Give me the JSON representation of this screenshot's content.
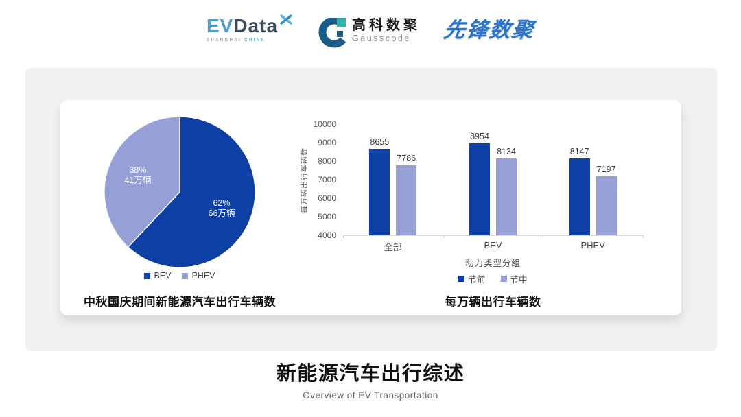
{
  "header": {
    "evdata": {
      "part1": "EV",
      "part2": "Data",
      "sub1": "SHANGHAI",
      "sub2": "CHINA"
    },
    "gausscode": {
      "name_cn": "高科数聚",
      "name_en": "Gausscode"
    },
    "pioneer": {
      "name": "先锋数聚"
    }
  },
  "colors": {
    "dark_blue": "#0D3FA5",
    "light_blue": "#96A0D6",
    "panel_bg": "#F0F0F0",
    "axis_line": "#D8D8D8",
    "brand_blue": "#2B74C8",
    "gauss_blue": "#1A5C86",
    "teal": "#2FB4AE"
  },
  "chart_data": [
    {
      "type": "pie",
      "title": "中秋国庆期间新能源汽车出行车辆数",
      "slices": [
        {
          "label": "BEV",
          "percent": 62,
          "value_label": "66万辆",
          "color": "#0D3FA5"
        },
        {
          "label": "PHEV",
          "percent": 38,
          "value_label": "41万辆",
          "color": "#96A0D6"
        }
      ],
      "legend": [
        "BEV",
        "PHEV"
      ],
      "legend_position": "bottom"
    },
    {
      "type": "bar",
      "title": "每万辆出行车辆数",
      "categories": [
        "全部",
        "BEV",
        "PHEV"
      ],
      "series": [
        {
          "name": "节前",
          "values": [
            8655,
            8954,
            8147
          ],
          "color": "#0D3FA5"
        },
        {
          "name": "节中",
          "values": [
            7786,
            8134,
            7197
          ],
          "color": "#96A0D6"
        }
      ],
      "xlabel": "动力类型分组",
      "ylabel": "每万辆出行车辆数",
      "ylim": [
        4000,
        10000
      ],
      "ytick_step": 1000,
      "grid": false,
      "legend_position": "bottom"
    }
  ],
  "footer": {
    "title": "新能源汽车出行综述",
    "subtitle": "Overview of EV Transportation"
  }
}
